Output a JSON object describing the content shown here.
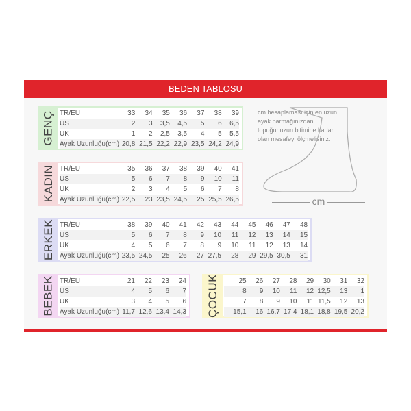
{
  "title": "BEDEN TABLOSU",
  "note": "cm hesaplaması için en uzun ayak parmağınızdan topuğunuzun bitimine kadar olan mesafeyi ölçmelisiniz.",
  "unit": "cm",
  "tables": [
    {
      "key": "genc",
      "name": "GENÇ",
      "color": "#d6f0d2",
      "rows": [
        {
          "label": "TR/EU",
          "values": [
            "33",
            "34",
            "35",
            "36",
            "37",
            "38",
            "39"
          ]
        },
        {
          "label": "US",
          "values": [
            "2",
            "3",
            "3,5",
            "4,5",
            "5",
            "6",
            "6,5"
          ]
        },
        {
          "label": "UK",
          "values": [
            "1",
            "2",
            "2,5",
            "3,5",
            "4",
            "5",
            "5,5"
          ]
        },
        {
          "label": "Ayak Uzunluğu(cm)",
          "values": [
            "20,8",
            "21,5",
            "22,2",
            "22,9",
            "23,5",
            "24,2",
            "24,9"
          ]
        }
      ]
    },
    {
      "key": "kadin",
      "name": "KADIN",
      "color": "#f6d9db",
      "rows": [
        {
          "label": "TR/EU",
          "values": [
            "35",
            "36",
            "37",
            "38",
            "39",
            "40",
            "41"
          ]
        },
        {
          "label": "US",
          "values": [
            "5",
            "6",
            "7",
            "8",
            "9",
            "10",
            "11"
          ]
        },
        {
          "label": "UK",
          "values": [
            "2",
            "3",
            "4",
            "5",
            "6",
            "7",
            "8"
          ]
        },
        {
          "label": "Ayak Uzunluğu(cm)",
          "values": [
            "22,5",
            "23",
            "23,5",
            "24,5",
            "25",
            "25,5",
            "26,5"
          ]
        }
      ]
    },
    {
      "key": "erkek",
      "name": "ERKEK",
      "color": "#dcdcf4",
      "rows": [
        {
          "label": "TR/EU",
          "values": [
            "38",
            "39",
            "40",
            "41",
            "42",
            "43",
            "44",
            "45",
            "46",
            "47",
            "48"
          ]
        },
        {
          "label": "US",
          "values": [
            "5",
            "6",
            "7",
            "8",
            "9",
            "10",
            "11",
            "12",
            "13",
            "14",
            "15"
          ]
        },
        {
          "label": "UK",
          "values": [
            "4",
            "5",
            "6",
            "7",
            "8",
            "9",
            "10",
            "11",
            "12",
            "13",
            "14"
          ]
        },
        {
          "label": "Ayak Uzunluğu(cm)",
          "values": [
            "23,5",
            "24,5",
            "25",
            "26",
            "27",
            "27,5",
            "28",
            "29",
            "29,5",
            "30,5",
            "31"
          ]
        }
      ]
    },
    {
      "key": "bebek",
      "name": "BEBEK",
      "color": "#f3d6f2",
      "rows": [
        {
          "label": "TR/EU",
          "values": [
            "21",
            "22",
            "23",
            "24"
          ]
        },
        {
          "label": "US",
          "values": [
            "4",
            "5",
            "6",
            "7"
          ]
        },
        {
          "label": "UK",
          "values": [
            "3",
            "4",
            "5",
            "6"
          ]
        },
        {
          "label": "Ayak Uzunluğu(cm)",
          "values": [
            "11,7",
            "12,6",
            "13,4",
            "14,3"
          ]
        }
      ]
    },
    {
      "key": "cocuk",
      "name": "ÇOCUK",
      "color": "#fbf6cc",
      "rows": [
        {
          "label": "",
          "values": [
            "25",
            "26",
            "27",
            "28",
            "29",
            "30",
            "31",
            "32"
          ]
        },
        {
          "label": "",
          "values": [
            "8",
            "9",
            "10",
            "11",
            "12",
            "12,5",
            "13",
            "1"
          ]
        },
        {
          "label": "",
          "values": [
            "7",
            "8",
            "9",
            "10",
            "11",
            "11,5",
            "12",
            "13"
          ]
        },
        {
          "label": "",
          "values": [
            "15,1",
            "16",
            "16,7",
            "17,4",
            "18,1",
            "18,8",
            "19,5",
            "20,2"
          ]
        }
      ]
    }
  ]
}
